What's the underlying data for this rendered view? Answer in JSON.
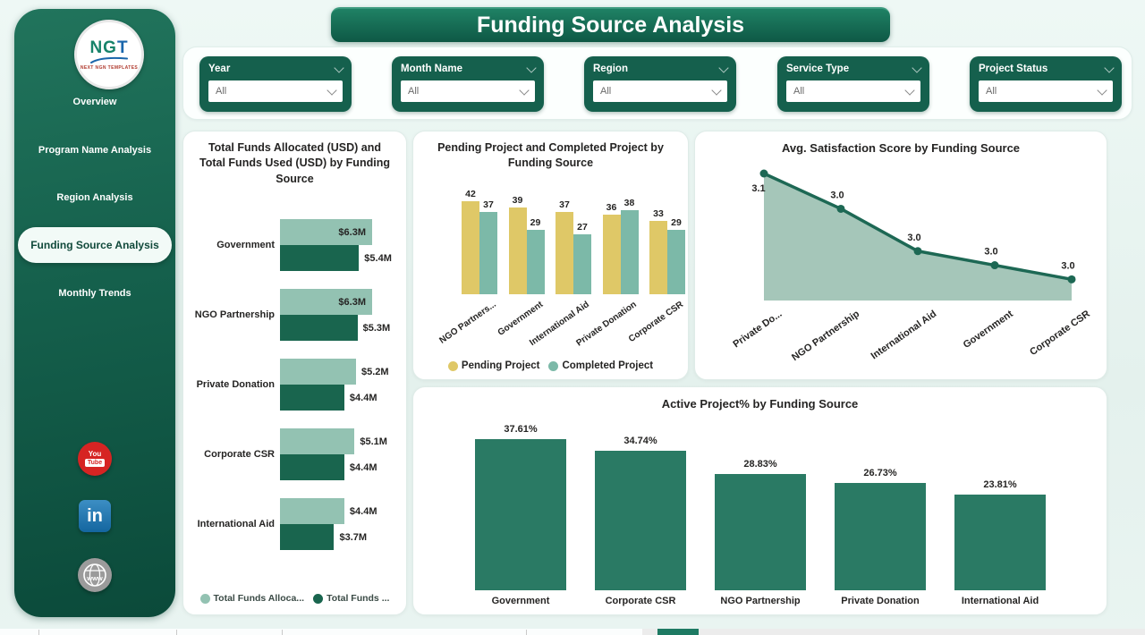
{
  "header": {
    "title": "Funding Source Analysis"
  },
  "colors": {
    "sidebar_green": "#15604c",
    "accent_dark_green": "#19654e",
    "accent_light_green": "#93c2b2",
    "accent_yellow": "#dfc867",
    "accent_teal": "#7cb9a8",
    "column_green": "#2a7a64",
    "line_green": "#1d6854",
    "area_fill": "#a5c6b9"
  },
  "sidebar": {
    "logo": {
      "ng": "NG",
      "t": "T",
      "subtext": "NEXT NGN TEMPLATES"
    },
    "items": [
      {
        "label": "Overview",
        "active": false
      },
      {
        "label": "Program Name Analysis",
        "active": false
      },
      {
        "label": "Region Analysis",
        "active": false
      },
      {
        "label": "Funding Source Analysis",
        "active": true
      },
      {
        "label": "Monthly Trends",
        "active": false
      }
    ],
    "social": {
      "youtube_line1": "You",
      "youtube_line2": "Tube",
      "linkedin": "in",
      "website": "www"
    }
  },
  "filters": [
    {
      "label": "Year",
      "value": "All"
    },
    {
      "label": "Month Name",
      "value": "All"
    },
    {
      "label": "Region",
      "value": "All"
    },
    {
      "label": "Service Type",
      "value": "All"
    },
    {
      "label": "Project Status",
      "value": "All"
    }
  ],
  "chart_data": [
    {
      "id": "funds",
      "type": "bar",
      "orientation": "horizontal",
      "title": "Total Funds Allocated (USD) and Total Funds Used (USD) by Funding Source",
      "categories": [
        "Government",
        "NGO Partnership",
        "Private Donation",
        "Corporate CSR",
        "International Aid"
      ],
      "series": [
        {
          "name": "Total Funds Alloca...",
          "color": "#93c2b2",
          "values": [
            6.3,
            6.3,
            5.2,
            5.1,
            4.4
          ],
          "labels": [
            "$6.3M",
            "$6.3M",
            "$5.2M",
            "$5.1M",
            "$4.4M"
          ]
        },
        {
          "name": "Total Funds ...",
          "color": "#19654e",
          "values": [
            5.4,
            5.3,
            4.4,
            4.4,
            3.7
          ],
          "labels": [
            "$5.4M",
            "$5.3M",
            "$4.4M",
            "$4.4M",
            "$3.7M"
          ]
        }
      ],
      "xlim": [
        0,
        6.5
      ],
      "legend_position": "bottom"
    },
    {
      "id": "pending_completed",
      "type": "bar",
      "title": "Pending Project and Completed Project by Funding Source",
      "categories": [
        "NGO Partners...",
        "Government",
        "International Aid",
        "Private Donation",
        "Corporate CSR"
      ],
      "series": [
        {
          "name": "Pending Project",
          "color": "#dfc867",
          "values": [
            42,
            39,
            37,
            36,
            33
          ]
        },
        {
          "name": "Completed Project",
          "color": "#7cb9a8",
          "values": [
            37,
            29,
            27,
            38,
            29
          ]
        }
      ],
      "ylim": [
        0,
        46
      ],
      "legend_position": "bottom"
    },
    {
      "id": "satisfaction",
      "type": "area",
      "title": "Avg. Satisfaction Score by Funding Source",
      "categories": [
        "Private Do...",
        "NGO Partnership",
        "International Aid",
        "Government",
        "Corporate CSR"
      ],
      "values": [
        3.1,
        3.0,
        3.0,
        3.0,
        3.0
      ],
      "labels": [
        "3.1",
        "3.0",
        "3.0",
        "3.0",
        "3.0"
      ],
      "values_est": [
        3.1,
        3.05,
        2.99,
        2.97,
        2.95
      ],
      "ylim": [
        2.92,
        3.12
      ],
      "line_color": "#1d6854",
      "fill_color": "#a5c6b9"
    },
    {
      "id": "active_pct",
      "type": "bar",
      "title": "Active Project% by Funding Source",
      "categories": [
        "Government",
        "Corporate CSR",
        "NGO Partnership",
        "Private Donation",
        "International Aid"
      ],
      "values": [
        37.61,
        34.74,
        28.83,
        26.73,
        23.81
      ],
      "labels": [
        "37.61%",
        "34.74%",
        "28.83%",
        "26.73%",
        "23.81%"
      ],
      "color": "#2a7a64",
      "ylim": [
        0,
        42
      ]
    }
  ]
}
